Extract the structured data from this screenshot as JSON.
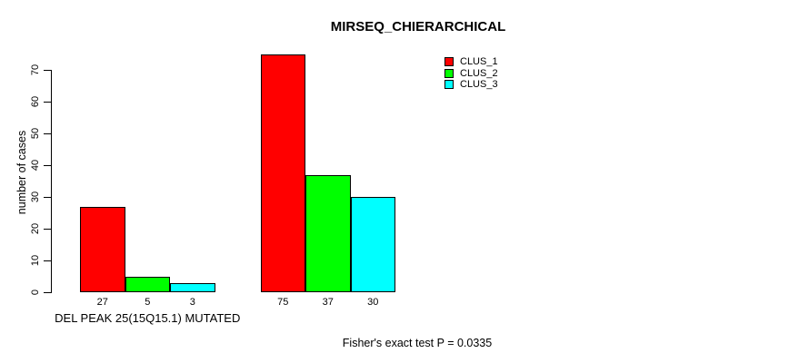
{
  "chart_data": {
    "type": "bar",
    "title": "MIRSEQ_CHIERARCHICAL",
    "ylabel": "number of cases",
    "xlabel": "",
    "ylim": [
      0,
      70
    ],
    "yticks": [
      0,
      10,
      20,
      30,
      40,
      50,
      60,
      70
    ],
    "grid": false,
    "legend_position": "top-right",
    "series": [
      {
        "name": "CLUS_1",
        "color": "#FF0000"
      },
      {
        "name": "CLUS_2",
        "color": "#00FF00"
      },
      {
        "name": "CLUS_3",
        "color": "#00FFFF"
      }
    ],
    "groups": [
      {
        "label": "DEL PEAK 25(15Q15.1) MUTATED",
        "values": [
          27,
          5,
          3
        ]
      },
      {
        "label": "",
        "values": [
          75,
          37,
          30
        ]
      }
    ],
    "annotation": "Fisher's exact test P = 0.0335"
  }
}
